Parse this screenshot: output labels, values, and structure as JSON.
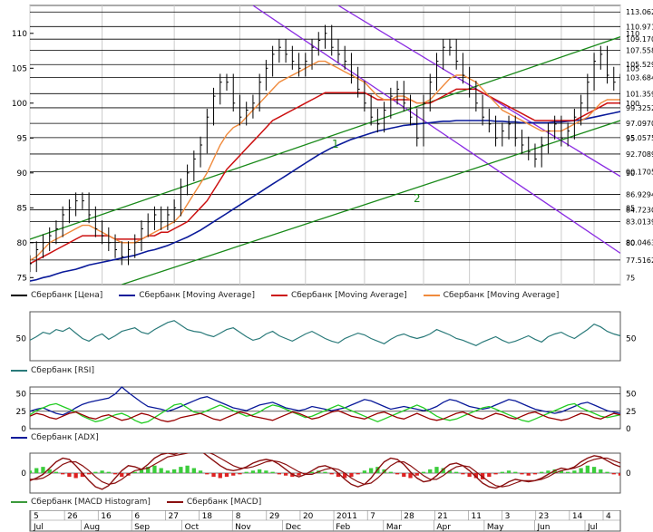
{
  "chart_data": [
    {
      "type": "line",
      "name_label": "Сбербанк [Цена]",
      "panel": "price",
      "ylim": [
        74,
        114
      ],
      "y_ticks": [
        75,
        80,
        85,
        90,
        95,
        100,
        105,
        110
      ],
      "price_levels": [
        "113.062",
        "110.971",
        "109.170",
        "107.558",
        "105.529",
        "103.684",
        "101.359",
        "99.3252",
        "97.0970",
        "95.0575",
        "92.7089",
        "90.1705",
        "86.9294",
        "84.7230",
        "83.0139",
        "80.0463",
        "77.5162"
      ],
      "price_level_values": [
        113.06,
        110.97,
        109.17,
        107.56,
        105.53,
        103.68,
        101.36,
        99.33,
        97.1,
        95.06,
        92.71,
        90.17,
        86.93,
        84.72,
        83.01,
        80.05,
        77.52
      ],
      "close": [
        77,
        79,
        80,
        81,
        82,
        84,
        85,
        86,
        86,
        84,
        82,
        81,
        80,
        79,
        78,
        79,
        80,
        82,
        83,
        84,
        83,
        84,
        85,
        88,
        90,
        92,
        94,
        98,
        101,
        103,
        103,
        100,
        98,
        99,
        100,
        103,
        105,
        107,
        108,
        107,
        106,
        105,
        106,
        108,
        109,
        110,
        108,
        107,
        106,
        104,
        102,
        100,
        98,
        97,
        99,
        101,
        102,
        100,
        98,
        95,
        100,
        103,
        106,
        108,
        108,
        106,
        104,
        102,
        100,
        98,
        97,
        95,
        96,
        97,
        95,
        94,
        93,
        92,
        94,
        96,
        97,
        95,
        96,
        98,
        100,
        103,
        106,
        107,
        104,
        103,
        101
      ],
      "ma_orange": [
        77.5,
        78,
        79,
        80,
        80.5,
        81,
        81.5,
        82,
        82.5,
        82.5,
        82,
        81.5,
        81,
        80.5,
        80,
        80,
        80,
        80.5,
        81,
        81.5,
        82,
        82.5,
        83,
        84,
        85.5,
        87,
        88.5,
        90,
        92,
        94,
        95.5,
        96.5,
        97,
        98,
        99,
        100,
        101,
        102,
        103,
        103.5,
        104,
        104.5,
        105,
        105.5,
        106,
        106,
        105.5,
        105,
        104.5,
        104,
        103.5,
        103,
        102,
        101,
        100.5,
        100.5,
        101,
        101,
        100.5,
        100,
        100,
        100.5,
        101.5,
        102.5,
        103.5,
        104,
        104,
        103.5,
        103,
        102,
        101,
        100,
        99,
        98.5,
        98,
        97.5,
        97,
        96.5,
        96,
        96,
        96,
        96,
        96.5,
        97,
        97.5,
        98,
        99,
        100,
        100.5,
        100.5,
        100.5
      ],
      "ma_red": [
        77,
        77.5,
        78,
        78.5,
        79,
        79.5,
        80,
        80.5,
        81,
        81,
        81,
        81,
        81,
        80.5,
        80.5,
        80.5,
        80.5,
        80.5,
        81,
        81,
        81.5,
        81.5,
        82,
        82.5,
        83,
        84,
        85,
        86,
        87.5,
        89,
        90.5,
        91.5,
        92.5,
        93.5,
        94.5,
        95.5,
        96.5,
        97.5,
        98,
        98.5,
        99,
        99.5,
        100,
        100.5,
        101,
        101.5,
        101.5,
        101.5,
        101.5,
        101.5,
        101.5,
        101.5,
        101,
        100.5,
        100.5,
        100.5,
        100.5,
        100.5,
        100.5,
        100,
        100,
        100,
        100.5,
        101,
        101.5,
        102,
        102,
        102,
        102,
        101.5,
        101,
        100.5,
        100,
        99.5,
        99,
        98.5,
        98,
        97.5,
        97.5,
        97.5,
        97.5,
        97.5,
        97.5,
        97.5,
        98,
        98.5,
        99,
        99.5,
        100,
        100,
        100
      ],
      "ma_blue": [
        74.5,
        74.7,
        75,
        75.2,
        75.5,
        75.8,
        76,
        76.2,
        76.5,
        76.8,
        77,
        77.2,
        77.4,
        77.6,
        77.8,
        78,
        78.2,
        78.5,
        78.8,
        79,
        79.3,
        79.6,
        80,
        80.4,
        80.8,
        81.3,
        81.8,
        82.4,
        83,
        83.6,
        84.2,
        84.8,
        85.4,
        86,
        86.6,
        87.2,
        87.8,
        88.4,
        89,
        89.6,
        90.2,
        90.8,
        91.4,
        92,
        92.6,
        93.1,
        93.6,
        94,
        94.4,
        94.8,
        95.1,
        95.4,
        95.7,
        96,
        96.2,
        96.4,
        96.6,
        96.8,
        96.9,
        97,
        97.1,
        97.2,
        97.3,
        97.4,
        97.4,
        97.5,
        97.5,
        97.5,
        97.5,
        97.5,
        97.5,
        97.4,
        97.4,
        97.3,
        97.3,
        97.2,
        97.2,
        97.2,
        97.2,
        97.2,
        97.3,
        97.3,
        97.4,
        97.5,
        97.6,
        97.8,
        98,
        98.2,
        98.4,
        98.6,
        98.8
      ],
      "trend_channel_labels": [
        "1",
        "2"
      ],
      "series_legend": [
        {
          "name": "Сбербанк [Цена]",
          "color": "#000000"
        },
        {
          "name": "Сбербанк [Moving Average]",
          "color": "#0a1a9a"
        },
        {
          "name": "Сбербанк [Moving Average]",
          "color": "#cc1111"
        },
        {
          "name": "Сбербанк [Moving Average]",
          "color": "#f08a3c"
        }
      ]
    },
    {
      "type": "line",
      "panel": "rsi",
      "name": "Сбербанк [RSI]",
      "color": "#2a7a7a",
      "ylim": [
        25,
        80
      ],
      "y_ticks": [
        50
      ],
      "values": [
        48,
        52,
        57,
        55,
        60,
        58,
        62,
        56,
        50,
        47,
        52,
        55,
        49,
        53,
        58,
        60,
        62,
        57,
        55,
        60,
        64,
        68,
        70,
        65,
        60,
        58,
        57,
        54,
        52,
        56,
        60,
        62,
        57,
        52,
        48,
        50,
        55,
        58,
        53,
        50,
        47,
        51,
        55,
        58,
        54,
        50,
        47,
        45,
        50,
        53,
        56,
        54,
        50,
        47,
        44,
        49,
        53,
        55,
        52,
        50,
        52,
        55,
        60,
        57,
        54,
        50,
        48,
        45,
        42,
        46,
        49,
        52,
        48,
        45,
        47,
        50,
        53,
        49,
        46,
        52,
        55,
        57,
        53,
        50,
        55,
        60,
        66,
        63,
        58,
        55,
        53
      ]
    },
    {
      "type": "line",
      "panel": "adx",
      "name": "Сбербанк [ADX]",
      "ylim": [
        0,
        60
      ],
      "y_ticks": [
        0,
        25,
        50
      ],
      "series": [
        {
          "name": "Сбербанк [ADX]",
          "color": "#0a1a9a",
          "values": [
            25,
            28,
            30,
            26,
            22,
            20,
            24,
            30,
            35,
            38,
            40,
            42,
            44,
            50,
            60,
            52,
            45,
            38,
            32,
            30,
            28,
            25,
            28,
            32,
            36,
            40,
            44,
            46,
            42,
            38,
            34,
            30,
            28,
            26,
            30,
            34,
            36,
            38,
            34,
            30,
            28,
            26,
            28,
            32,
            30,
            28,
            26,
            28,
            30,
            34,
            38,
            42,
            40,
            36,
            32,
            28,
            30,
            32,
            30,
            28,
            26,
            28,
            32,
            38,
            42,
            40,
            36,
            32,
            30,
            28,
            30,
            34,
            38,
            42,
            40,
            36,
            32,
            28,
            26,
            24,
            22,
            24,
            28,
            32,
            36,
            38,
            34,
            30,
            26,
            24,
            22
          ]
        },
        {
          "name": "plus_di",
          "color": "#22cc22",
          "values": [
            20,
            26,
            30,
            34,
            36,
            32,
            28,
            24,
            18,
            14,
            10,
            12,
            16,
            20,
            22,
            18,
            12,
            8,
            10,
            16,
            22,
            28,
            34,
            36,
            30,
            24,
            22,
            26,
            30,
            34,
            30,
            26,
            22,
            18,
            20,
            24,
            30,
            34,
            32,
            28,
            24,
            20,
            16,
            18,
            22,
            26,
            30,
            34,
            30,
            26,
            22,
            18,
            14,
            10,
            14,
            18,
            22,
            26,
            30,
            34,
            30,
            24,
            18,
            14,
            12,
            14,
            18,
            22,
            26,
            30,
            32,
            28,
            24,
            20,
            16,
            12,
            10,
            14,
            18,
            22,
            26,
            30,
            34,
            36,
            30,
            26,
            22,
            18,
            16,
            18,
            20
          ]
        },
        {
          "name": "minus_di",
          "color": "#990000",
          "values": [
            18,
            22,
            20,
            16,
            14,
            18,
            22,
            24,
            20,
            16,
            14,
            18,
            20,
            16,
            12,
            14,
            18,
            22,
            20,
            16,
            12,
            10,
            12,
            16,
            18,
            20,
            22,
            18,
            14,
            12,
            16,
            20,
            24,
            22,
            18,
            16,
            14,
            12,
            16,
            20,
            24,
            22,
            18,
            14,
            16,
            20,
            24,
            26,
            22,
            18,
            16,
            14,
            18,
            22,
            24,
            20,
            16,
            14,
            18,
            22,
            18,
            14,
            12,
            14,
            18,
            22,
            24,
            20,
            16,
            14,
            18,
            22,
            20,
            16,
            14,
            18,
            22,
            24,
            20,
            16,
            14,
            12,
            14,
            18,
            22,
            20,
            16,
            14,
            18,
            22,
            20
          ]
        }
      ]
    },
    {
      "type": "bar",
      "panel": "macd",
      "name": "Сбербанк [MACD Histogram]",
      "ylim": [
        -1.6,
        1.6
      ],
      "y_ticks": [
        0
      ],
      "histogram": [
        0.2,
        0.4,
        0.5,
        0.3,
        0.1,
        -0.1,
        -0.3,
        -0.4,
        -0.3,
        -0.1,
        0.1,
        0.2,
        0.1,
        -0.1,
        -0.3,
        -0.2,
        0.1,
        0.3,
        0.5,
        0.6,
        0.4,
        0.2,
        0.3,
        0.5,
        0.6,
        0.4,
        0.2,
        -0.1,
        -0.3,
        -0.4,
        -0.3,
        -0.2,
        -0.1,
        0.1,
        0.2,
        0.3,
        0.2,
        0.1,
        -0.1,
        -0.2,
        -0.3,
        -0.2,
        -0.1,
        0.1,
        0.2,
        0.1,
        -0.1,
        -0.3,
        -0.4,
        -0.3,
        -0.1,
        0.2,
        0.4,
        0.5,
        0.3,
        0.1,
        -0.1,
        -0.3,
        -0.4,
        -0.2,
        0.1,
        0.3,
        0.5,
        0.4,
        0.2,
        0.1,
        -0.1,
        -0.3,
        -0.4,
        -0.5,
        -0.3,
        -0.1,
        0.1,
        0.2,
        0.1,
        -0.1,
        -0.2,
        -0.1,
        0.1,
        0.2,
        0.3,
        0.2,
        0.1,
        0.2,
        0.4,
        0.6,
        0.5,
        0.3,
        0.1,
        -0.1,
        -0.2
      ],
      "macd": [
        -0.6,
        -0.4,
        -0.1,
        0.4,
        0.9,
        1.2,
        1.1,
        0.6,
        0,
        -0.6,
        -1.1,
        -1.3,
        -1.0,
        -0.4,
        0.2,
        0.6,
        0.5,
        0.3,
        0.7,
        1.2,
        1.5,
        1.6,
        1.5,
        1.7,
        1.9,
        2.0,
        1.8,
        1.4,
        1.0,
        0.6,
        0.3,
        0.2,
        0.3,
        0.5,
        0.8,
        1.0,
        1.1,
        1.0,
        0.7,
        0.3,
        -0.1,
        -0.3,
        -0.1,
        0.2,
        0.5,
        0.6,
        0.4,
        0.0,
        -0.5,
        -0.9,
        -1.1,
        -0.9,
        -0.4,
        0.3,
        0.9,
        1.2,
        1.1,
        0.7,
        0.1,
        -0.4,
        -0.7,
        -0.6,
        -0.2,
        0.3,
        0.7,
        0.8,
        0.6,
        0.2,
        -0.3,
        -0.8,
        -1.1,
        -1.2,
        -1.0,
        -0.7,
        -0.5,
        -0.6,
        -0.7,
        -0.6,
        -0.4,
        -0.1,
        0.2,
        0.4,
        0.3,
        0.5,
        0.9,
        1.2,
        1.4,
        1.3,
        1.0,
        0.7,
        0.5
      ],
      "signal": [
        -0.5,
        -0.5,
        -0.4,
        -0.1,
        0.3,
        0.7,
        0.9,
        0.9,
        0.6,
        0.2,
        -0.3,
        -0.7,
        -0.9,
        -0.8,
        -0.5,
        -0.1,
        0.2,
        0.3,
        0.4,
        0.7,
        1.0,
        1.3,
        1.4,
        1.5,
        1.6,
        1.7,
        1.8,
        1.7,
        1.5,
        1.2,
        0.9,
        0.6,
        0.4,
        0.4,
        0.5,
        0.7,
        0.9,
        1.0,
        0.9,
        0.7,
        0.4,
        0.1,
        -0.1,
        -0.1,
        0.1,
        0.3,
        0.4,
        0.3,
        0.0,
        -0.4,
        -0.7,
        -0.9,
        -0.8,
        -0.4,
        0.1,
        0.6,
        0.9,
        0.9,
        0.6,
        0.2,
        -0.2,
        -0.5,
        -0.5,
        -0.2,
        0.2,
        0.5,
        0.6,
        0.5,
        0.1,
        -0.3,
        -0.7,
        -1.0,
        -1.1,
        -1.0,
        -0.8,
        -0.6,
        -0.6,
        -0.6,
        -0.5,
        -0.3,
        0.0,
        0.2,
        0.3,
        0.4,
        0.6,
        0.9,
        1.1,
        1.2,
        1.2,
        1.0,
        0.8
      ],
      "series_legend": [
        {
          "name": "Сбербанк [MACD Histogram]",
          "color": "#3c9a3c"
        },
        {
          "name": "Сбербанк [MACD]",
          "color": "#8a1010"
        }
      ]
    }
  ],
  "x_axis": {
    "top_row": [
      "5",
      "26",
      "16",
      "6",
      "27",
      "18",
      "8",
      "29",
      "20",
      "2011",
      "7",
      "28",
      "21",
      "11",
      "3",
      "23",
      "14",
      "4"
    ],
    "bottom_row": [
      "Jul",
      "Aug",
      "Sep",
      "Oct",
      "Nov",
      "Dec",
      "Feb",
      "Mar",
      "Apr",
      "May",
      "Jun",
      "Jul"
    ]
  },
  "colors": {
    "price": "#000000",
    "ma_long": "#0a1a9a",
    "ma_mid": "#cc1111",
    "ma_short": "#f08a3c",
    "channel_purple": "#8a2be2",
    "channel_green": "#1a8a1a",
    "rsi": "#2a7a7a",
    "macd_hist_pos": "#3ccc3c",
    "macd_hist_neg": "#dd2222",
    "macd_line": "#8a1010"
  }
}
